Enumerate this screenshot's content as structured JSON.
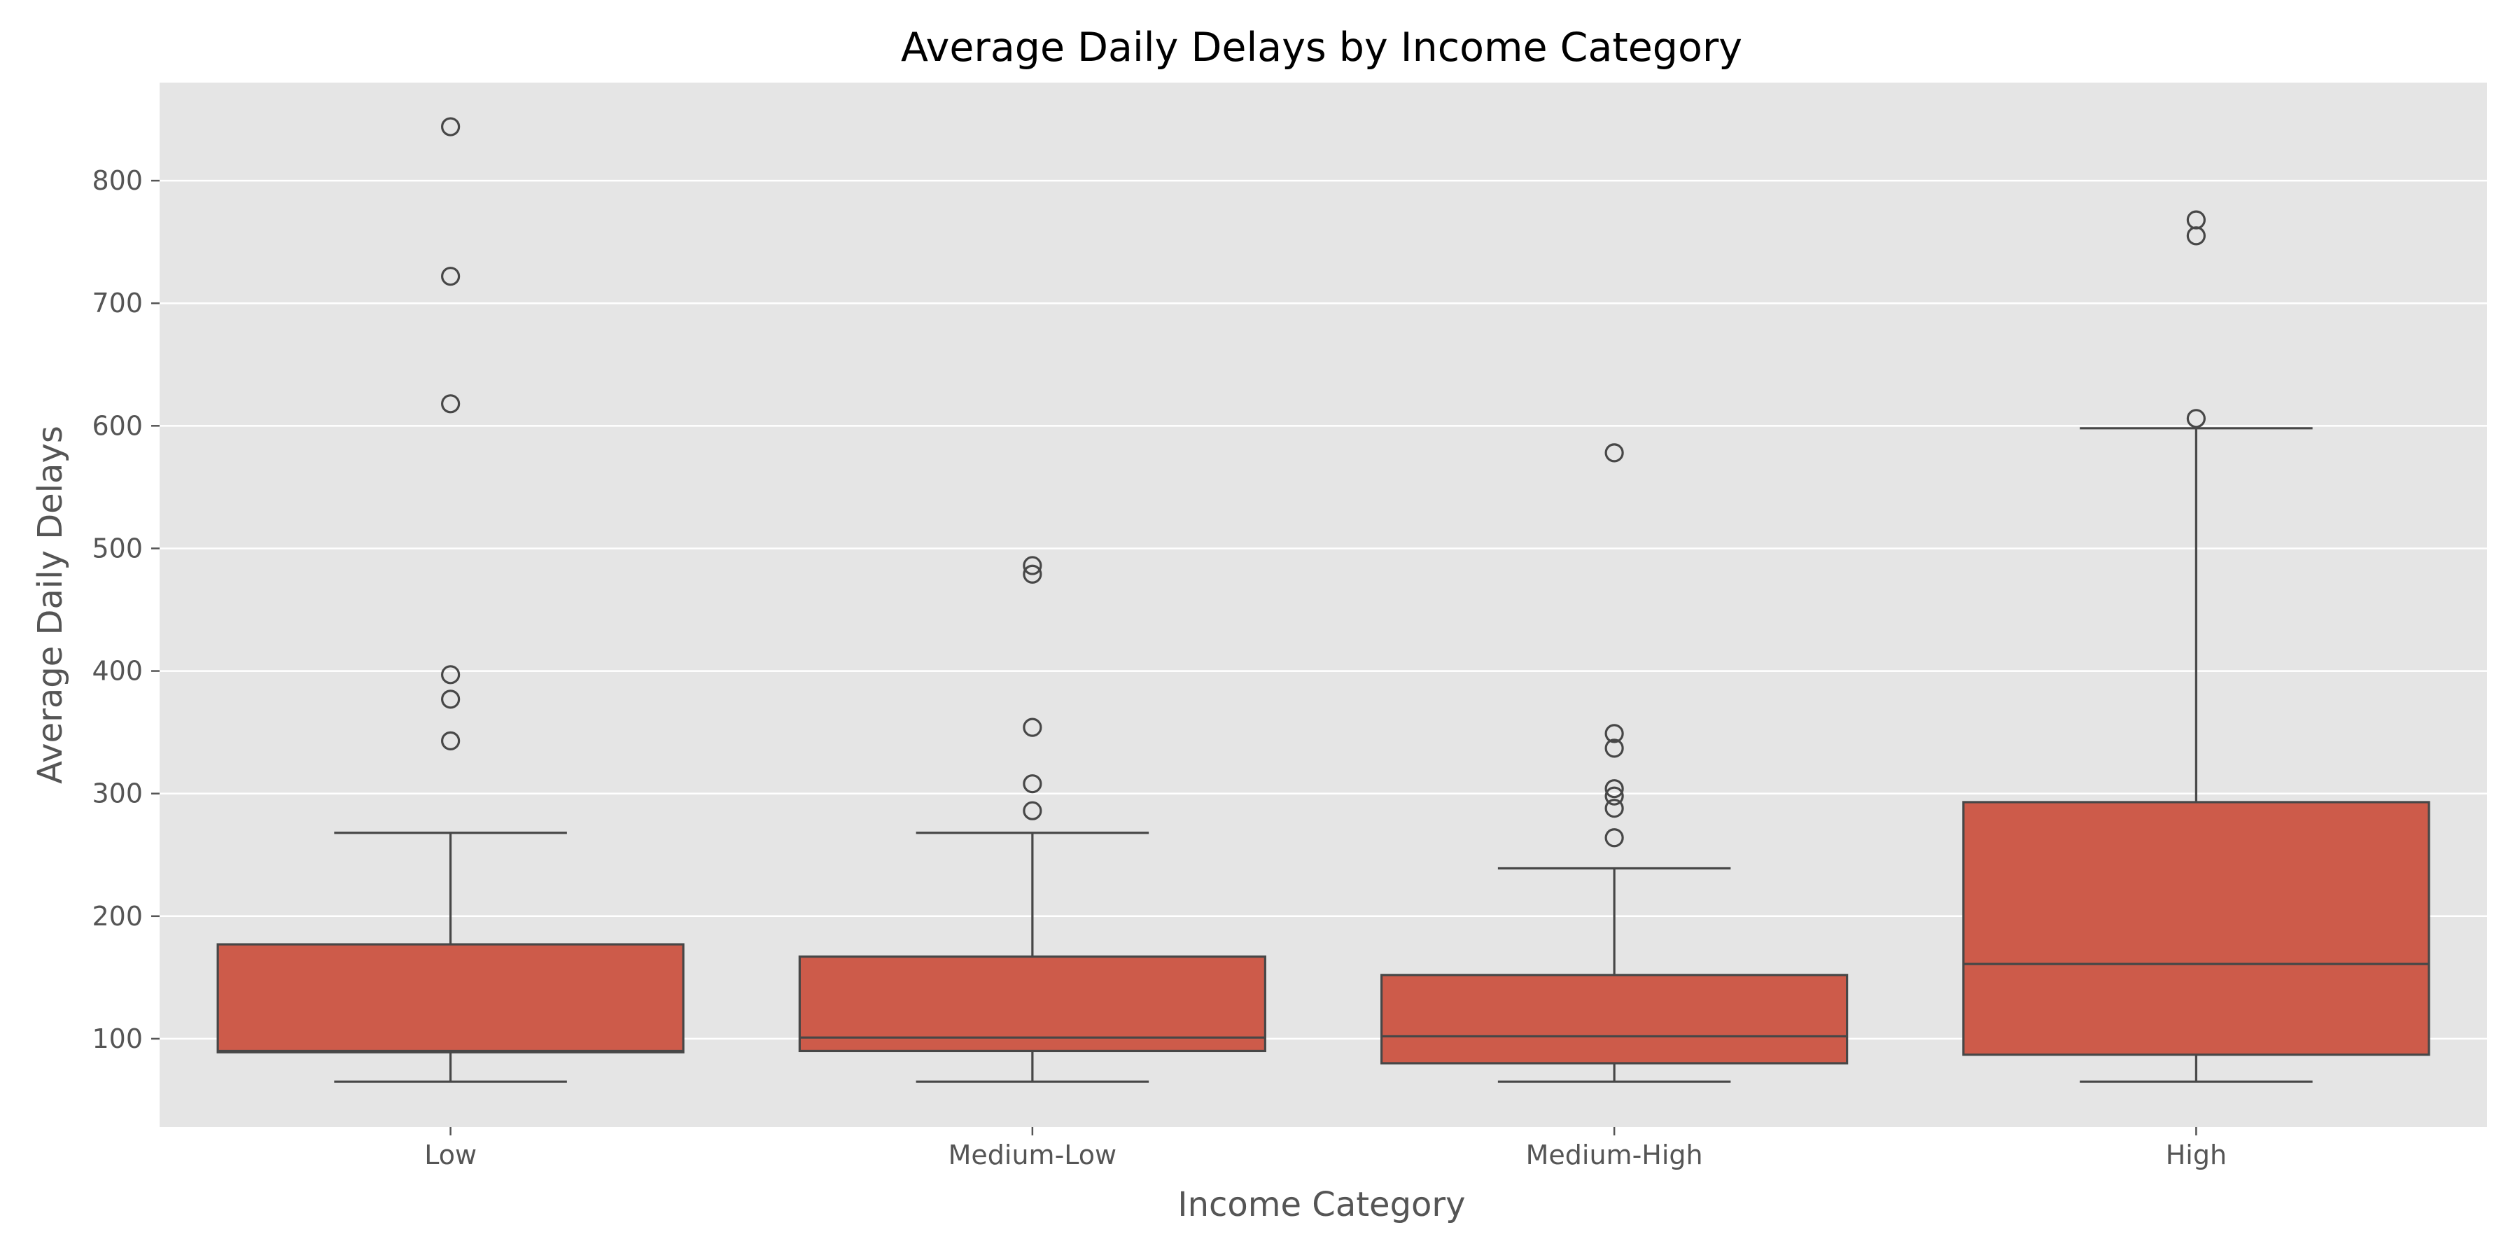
{
  "chart_data": {
    "type": "box",
    "title": "Average Daily Delays by Income Category",
    "xlabel": "Income Category",
    "ylabel": "Average Daily Delays",
    "categories": [
      "Low",
      "Medium-Low",
      "Medium-High",
      "High"
    ],
    "ylim": [
      28,
      880
    ],
    "yticks": [
      100,
      200,
      300,
      400,
      500,
      600,
      700,
      800
    ],
    "grid": true,
    "legend": "none",
    "colors": {
      "box_fill": "#cd5b4a",
      "line": "#474747",
      "plot_bg": "#e5e5e5",
      "grid": "#ffffff",
      "tick_text": "#555555"
    },
    "boxes": [
      {
        "category": "Low",
        "whisker_low": 65,
        "q1": 89,
        "median": 90,
        "q3": 177,
        "whisker_high": 268,
        "outliers": [
          343,
          377,
          397,
          618,
          722,
          844
        ]
      },
      {
        "category": "Medium-Low",
        "whisker_low": 65,
        "q1": 90,
        "median": 101,
        "q3": 167,
        "whisker_high": 268,
        "outliers": [
          286,
          308,
          354,
          479,
          486
        ]
      },
      {
        "category": "Medium-High",
        "whisker_low": 65,
        "q1": 80,
        "median": 102,
        "q3": 152,
        "whisker_high": 239,
        "outliers": [
          264,
          288,
          298,
          304,
          337,
          349,
          578
        ]
      },
      {
        "category": "High",
        "whisker_low": 65,
        "q1": 87,
        "median": 161,
        "q3": 293,
        "whisker_high": 598,
        "outliers": [
          606,
          755,
          768
        ]
      }
    ]
  }
}
